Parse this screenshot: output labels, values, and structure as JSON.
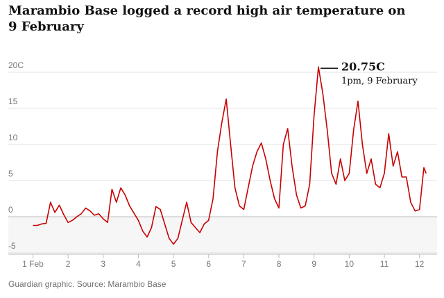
{
  "chart_data": {
    "type": "line",
    "title": "Marambio Base logged a record high air temperature on 9 February",
    "source": "Guardian graphic. Source: Marambio Base",
    "color": "#c70000",
    "grid": true,
    "xlim": [
      0.3,
      12.5
    ],
    "ylim": [
      -5,
      20
    ],
    "xticks": [
      {
        "value": 1,
        "label": "1 Feb"
      },
      2,
      3,
      4,
      5,
      6,
      7,
      8,
      9,
      10,
      11,
      12
    ],
    "yticks": [
      {
        "value": 20,
        "label": "20C"
      },
      15,
      10,
      5,
      0,
      -5
    ],
    "x": [
      1.0,
      1.125,
      1.25,
      1.375,
      1.5,
      1.625,
      1.75,
      1.875,
      2.0,
      2.125,
      2.25,
      2.375,
      2.5,
      2.625,
      2.75,
      2.875,
      3.0,
      3.125,
      3.25,
      3.375,
      3.5,
      3.625,
      3.75,
      3.875,
      4.0,
      4.125,
      4.25,
      4.375,
      4.5,
      4.625,
      4.75,
      4.875,
      5.0,
      5.125,
      5.25,
      5.375,
      5.5,
      5.625,
      5.75,
      5.875,
      6.0,
      6.125,
      6.25,
      6.375,
      6.5,
      6.625,
      6.75,
      6.875,
      7.0,
      7.125,
      7.25,
      7.375,
      7.5,
      7.625,
      7.75,
      7.875,
      8.0,
      8.125,
      8.25,
      8.375,
      8.5,
      8.625,
      8.75,
      8.875,
      9.0,
      9.125,
      9.25,
      9.375,
      9.5,
      9.625,
      9.75,
      9.875,
      10.0,
      10.125,
      10.25,
      10.375,
      10.5,
      10.625,
      10.75,
      10.875,
      11.0,
      11.125,
      11.25,
      11.375,
      11.5,
      11.625,
      11.75,
      11.875,
      12.0,
      12.125,
      12.1875
    ],
    "series": [
      {
        "values": [
          -1.2,
          -1.2,
          -1.0,
          -0.9,
          2.0,
          0.6,
          1.6,
          0.3,
          -0.8,
          -0.5,
          0,
          0.4,
          1.2,
          0.8,
          0.2,
          0.4,
          -0.3,
          -0.8,
          3.8,
          2.0,
          4.0,
          3.0,
          1.5,
          0.5,
          -0.5,
          -2.0,
          -2.8,
          -1.5,
          1.4,
          1.0,
          -1.0,
          -3.0,
          -3.8,
          -3.0,
          -0.5,
          2.0,
          -0.8,
          -1.5,
          -2.2,
          -1.0,
          -0.5,
          2.5,
          9,
          13,
          16.3,
          10,
          4,
          1.5,
          1.0,
          4,
          7,
          9,
          10.2,
          8,
          5,
          2.5,
          1.2,
          10,
          12.2,
          7,
          3,
          1.2,
          1.5,
          4.5,
          14,
          20.75,
          17,
          12,
          6,
          4.5,
          8,
          5,
          6,
          12,
          16,
          10,
          6,
          8,
          4.5,
          4,
          6,
          11.5,
          7,
          9,
          5.5,
          5.5,
          2,
          0.8,
          1.0,
          6.8,
          6.0
        ]
      }
    ],
    "annotation": {
      "x": 9.125,
      "value": 20.75,
      "text": "20.75C",
      "detail": "1pm, 9 February"
    }
  }
}
